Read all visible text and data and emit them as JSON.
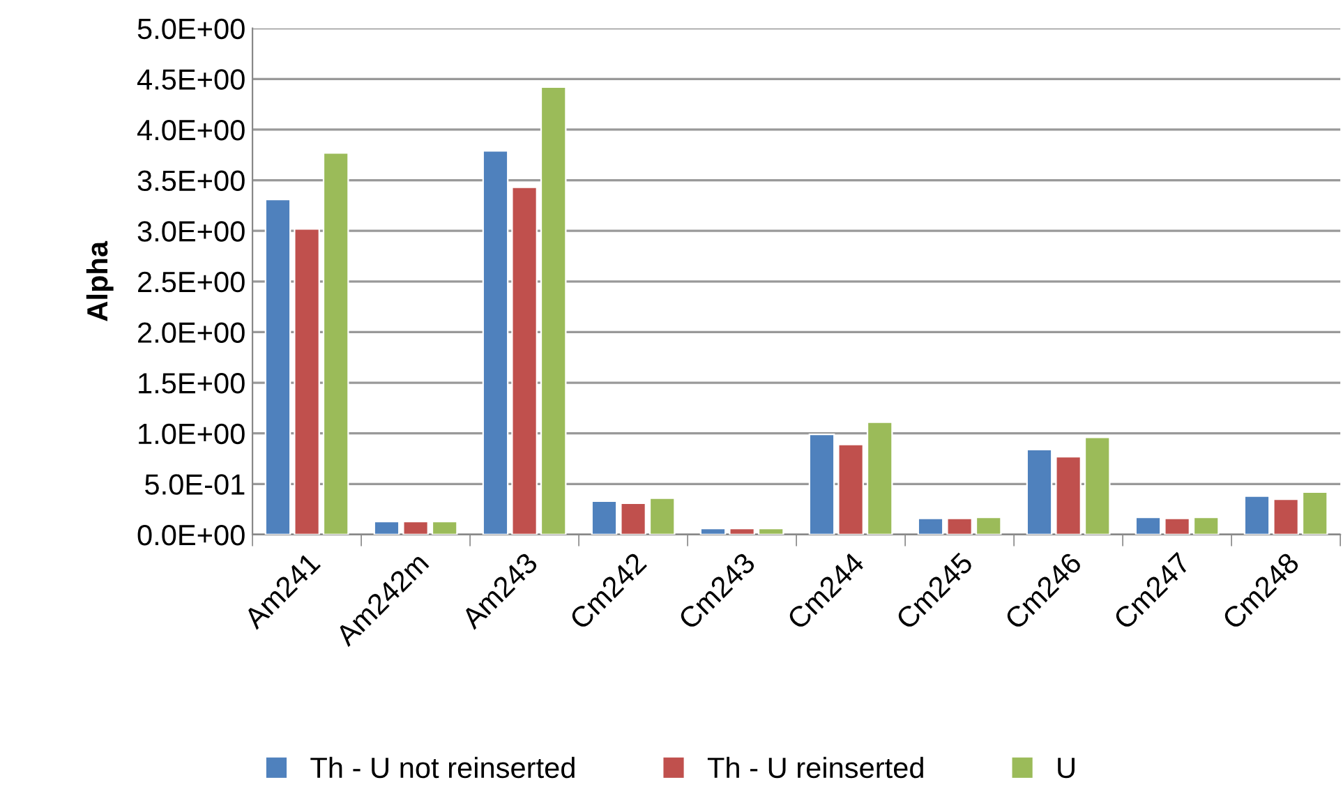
{
  "chart_data": {
    "type": "bar",
    "ylabel": "Alpha",
    "categories": [
      "Am241",
      "Am242m",
      "Am243",
      "Cm242",
      "Cm243",
      "Cm244",
      "Cm245",
      "Cm246",
      "Cm247",
      "Cm248"
    ],
    "series": [
      {
        "name": "Th - U not reinserted",
        "color": "#4f81bd",
        "values": [
          3.31,
          0.13,
          3.79,
          0.33,
          0.06,
          0.99,
          0.16,
          0.84,
          0.17,
          0.38
        ]
      },
      {
        "name": "Th - U reinserted",
        "color": "#c0504d",
        "values": [
          3.02,
          0.13,
          3.43,
          0.31,
          0.06,
          0.89,
          0.16,
          0.77,
          0.16,
          0.35
        ]
      },
      {
        "name": "U",
        "color": "#9bbb59",
        "values": [
          3.77,
          0.13,
          4.42,
          0.36,
          0.06,
          1.11,
          0.17,
          0.96,
          0.17,
          0.42
        ]
      }
    ],
    "ylim": [
      0,
      5
    ],
    "yticks": [
      {
        "value": 0,
        "label": "0.0E+00"
      },
      {
        "value": 0.5,
        "label": "5.0E-01"
      },
      {
        "value": 1,
        "label": "1.0E+00"
      },
      {
        "value": 1.5,
        "label": "1.5E+00"
      },
      {
        "value": 2,
        "label": "2.0E+00"
      },
      {
        "value": 2.5,
        "label": "2.5E+00"
      },
      {
        "value": 3,
        "label": "3.0E+00"
      },
      {
        "value": 3.5,
        "label": "3.5E+00"
      },
      {
        "value": 4,
        "label": "4.0E+00"
      },
      {
        "value": 4.5,
        "label": "4.5E+00"
      },
      {
        "value": 5,
        "label": "5.0E+00"
      }
    ],
    "grid": "y",
    "legend": "bottom"
  }
}
